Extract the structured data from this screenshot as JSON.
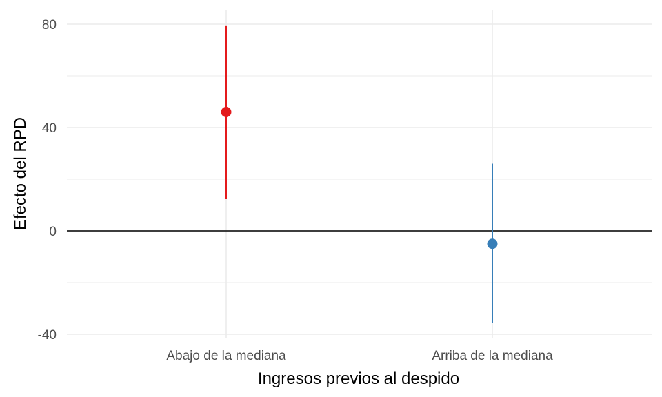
{
  "chart_data": {
    "type": "errorbar",
    "xlabel": "Ingresos previos al despido",
    "ylabel": "Efecto del RPD",
    "categories": [
      "Abajo de la mediana",
      "Arriba de la mediana"
    ],
    "points": [
      {
        "category": "Abajo de la mediana",
        "estimate": 46,
        "lower": 12.5,
        "upper": 79.5,
        "color": "#e41a1c"
      },
      {
        "category": "Arriba de la mediana",
        "estimate": -5,
        "lower": -35.5,
        "upper": 26,
        "color": "#377eb8"
      }
    ],
    "ylim": [
      -42,
      86
    ],
    "yticks": [
      -40,
      0,
      40,
      80
    ],
    "reference_line": 0,
    "grid": true,
    "colors": {
      "grid": "#ebebeb",
      "reference": "#000000"
    }
  }
}
